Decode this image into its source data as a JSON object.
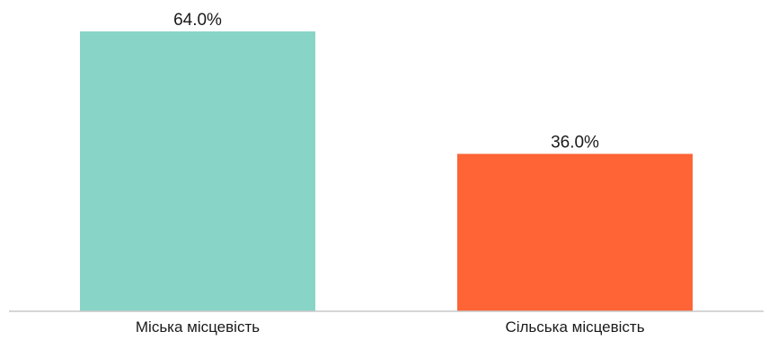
{
  "chart_data": {
    "type": "bar",
    "categories": [
      "Міська місцевість",
      "Сільська місцевість"
    ],
    "values": [
      64.0,
      36.0
    ],
    "value_labels": [
      "64.0%",
      "36.0%"
    ],
    "colors": [
      "#88d5c7",
      "#fe6436"
    ],
    "title": "",
    "xlabel": "",
    "ylabel": "",
    "ylim": [
      0,
      64.0
    ],
    "grid": false,
    "legend": "none"
  }
}
